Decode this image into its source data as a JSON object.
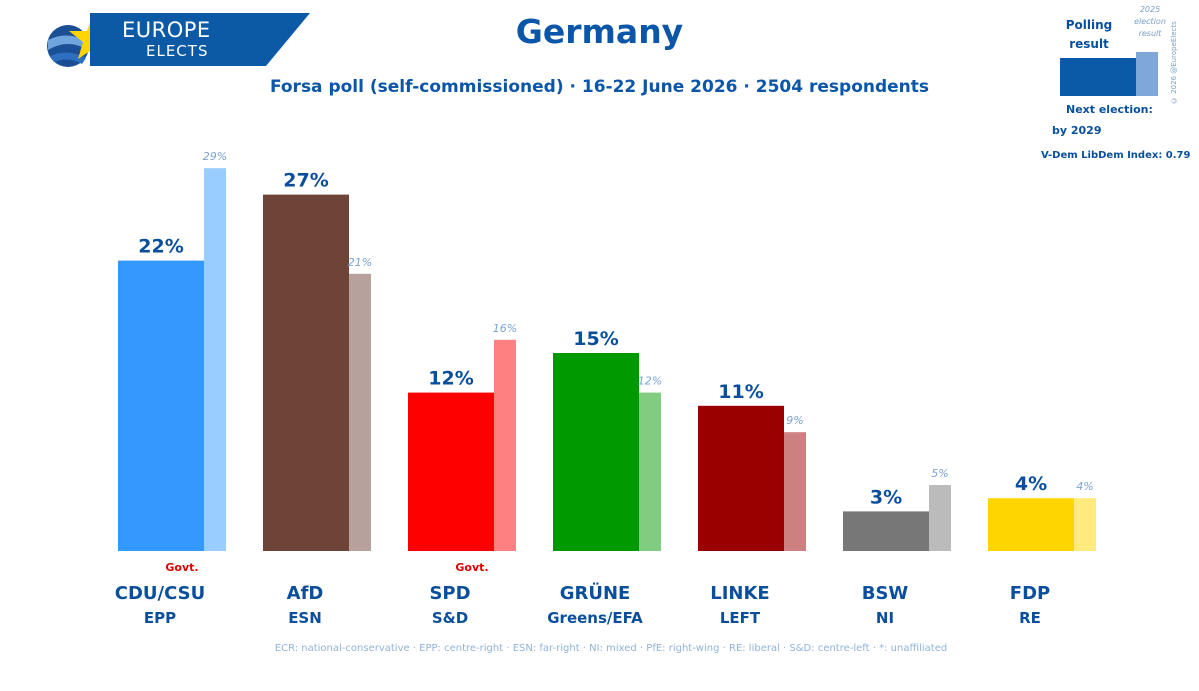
{
  "brand": {
    "line1": "EUROPE",
    "line2": "ELECTS"
  },
  "title": "Germany",
  "subtitle": "Forsa poll (self-commissioned) · 16-22 June 2026 · 2504 respondents",
  "legend": {
    "polling_label": "Polling result",
    "election_label": "2025 election result",
    "copyright": "© 2026 @EuropeElects",
    "next_election_label": "Next election:",
    "next_election_value": "by 2029",
    "vdem": "V-Dem LibDem Index: 0.79"
  },
  "footnote": "ECR: national-conservative · EPP: centre-right · ESN: far-right · NI: mixed · PfE: right-wing · RE: liberal · S&D: centre-left · *: unaffiliated",
  "chart_data": {
    "type": "bar",
    "categories": [
      "CDU/CSU",
      "AfD",
      "SPD",
      "GRÜNE",
      "LINKE",
      "BSW",
      "FDP"
    ],
    "groups": [
      "EPP",
      "ESN",
      "S&D",
      "Greens/EFA",
      "LEFT",
      "NI",
      "RE"
    ],
    "series": [
      {
        "name": "Polling result",
        "values": [
          22,
          27,
          12,
          15,
          11,
          3,
          4
        ],
        "labels": [
          "22%",
          "27%",
          "12%",
          "15%",
          "11%",
          "3%",
          "4%"
        ]
      },
      {
        "name": "2025 election result",
        "values": [
          29,
          21,
          16,
          12,
          9,
          5,
          4
        ],
        "labels": [
          "29%",
          "21%",
          "16%",
          "12%",
          "9%",
          "5%",
          "4%"
        ]
      }
    ],
    "colors": [
      "#3399ff",
      "#6e4439",
      "#ff0000",
      "#009900",
      "#990000",
      "#777777",
      "#ffd500"
    ],
    "result_colors": [
      "#99ccff",
      "#b7a19c",
      "#ff8080",
      "#80cc80",
      "#cc8080",
      "#bbbbbb",
      "#ffea80"
    ],
    "govt": [
      true,
      false,
      true,
      false,
      false,
      false,
      false
    ],
    "govt_label": "Govt.",
    "ylim": [
      0,
      30
    ],
    "grid": false
  }
}
